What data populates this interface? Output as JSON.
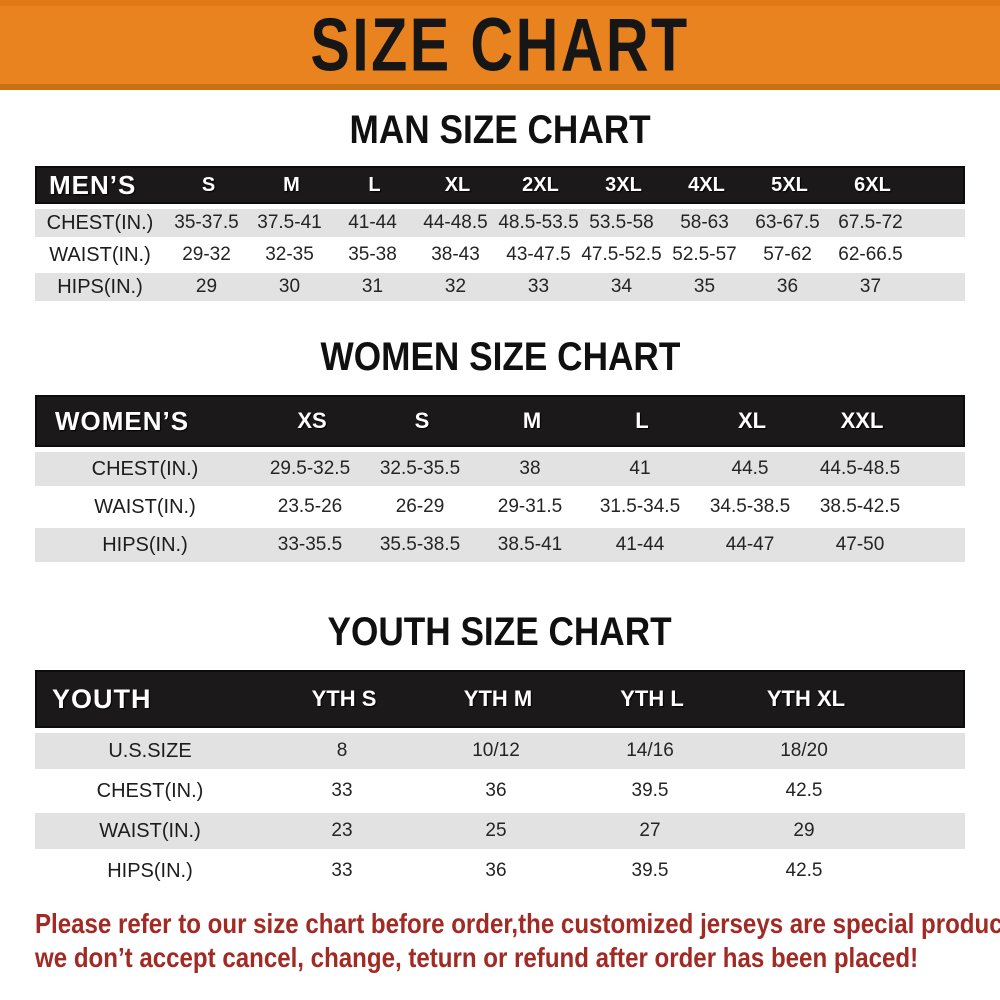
{
  "banner": {
    "title": "SIZE CHART"
  },
  "colors": {
    "banner_bg": "#E8831F",
    "banner_edge": "#C9710F",
    "header_bg": "#1B1919",
    "header_text": "#FFFFFF",
    "row_alt_bg": "#E2E2E2",
    "note_color": "#A12A24"
  },
  "men": {
    "heading": "MAN SIZE CHART",
    "label": "MEN’S",
    "sizes": [
      "S",
      "M",
      "L",
      "XL",
      "2XL",
      "3XL",
      "4XL",
      "5XL",
      "6XL"
    ],
    "rows": [
      {
        "label": "CHEST(IN.)",
        "values": [
          "35-37.5",
          "37.5-41",
          "41-44",
          "44-48.5",
          "48.5-53.5",
          "53.5-58",
          "58-63",
          "63-67.5",
          "67.5-72"
        ]
      },
      {
        "label": "WAIST(IN.)",
        "values": [
          "29-32",
          "32-35",
          "35-38",
          "38-43",
          "43-47.5",
          "47.5-52.5",
          "52.5-57",
          "57-62",
          "62-66.5"
        ]
      },
      {
        "label": "HIPS(IN.)",
        "values": [
          "29",
          "30",
          "31",
          "32",
          "33",
          "34",
          "35",
          "36",
          "37"
        ]
      }
    ]
  },
  "women": {
    "heading": "WOMEN SIZE CHART",
    "label": "WOMEN’S",
    "sizes": [
      "XS",
      "S",
      "M",
      "L",
      "XL",
      "XXL"
    ],
    "rows": [
      {
        "label": "CHEST(IN.)",
        "values": [
          "29.5-32.5",
          "32.5-35.5",
          "38",
          "41",
          "44.5",
          "44.5-48.5"
        ]
      },
      {
        "label": "WAIST(IN.)",
        "values": [
          "23.5-26",
          "26-29",
          "29-31.5",
          "31.5-34.5",
          "34.5-38.5",
          "38.5-42.5"
        ]
      },
      {
        "label": "HIPS(IN.)",
        "values": [
          "33-35.5",
          "35.5-38.5",
          "38.5-41",
          "41-44",
          "44-47",
          "47-50"
        ]
      }
    ]
  },
  "youth": {
    "heading": "YOUTH SIZE CHART",
    "label": "YOUTH",
    "sizes": [
      "YTH S",
      "YTH M",
      "YTH L",
      "YTH XL"
    ],
    "rows": [
      {
        "label": "U.S.SIZE",
        "values": [
          "8",
          "10/12",
          "14/16",
          "18/20"
        ]
      },
      {
        "label": "CHEST(IN.)",
        "values": [
          "33",
          "36",
          "39.5",
          "42.5"
        ]
      },
      {
        "label": "WAIST(IN.)",
        "values": [
          "23",
          "25",
          "27",
          "29"
        ]
      },
      {
        "label": "HIPS(IN.)",
        "values": [
          "33",
          "36",
          "39.5",
          "42.5"
        ]
      }
    ]
  },
  "note": {
    "line1": "Please refer to our size chart before order,the customized jerseys are special products,",
    "line2": "we don’t accept cancel, change, teturn or refund after order has been placed!"
  }
}
